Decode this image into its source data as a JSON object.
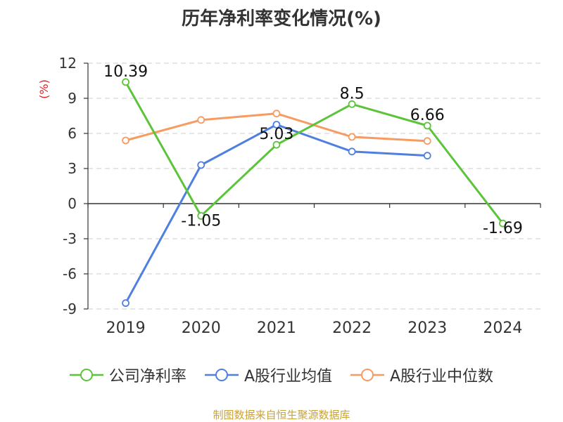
{
  "chart_data": {
    "type": "line",
    "title": "历年净利率变化情况(%)",
    "ylabel": "(%)",
    "xlabel": "",
    "categories": [
      "2019",
      "2020",
      "2021",
      "2022",
      "2023",
      "2024"
    ],
    "ylim": [
      -9,
      12
    ],
    "yticks": [
      12,
      9,
      6,
      3,
      0,
      -3,
      -6,
      -9
    ],
    "grid": true,
    "legend_position": "bottom",
    "series": [
      {
        "name": "公司净利率",
        "color": "#5cc43a",
        "values": [
          10.39,
          -1.05,
          5.03,
          8.5,
          6.66,
          -1.69
        ],
        "show_labels": true
      },
      {
        "name": "A股行业均值",
        "color": "#4f7fe0",
        "values": [
          -8.5,
          3.3,
          6.75,
          4.45,
          4.1,
          null
        ],
        "show_labels": false
      },
      {
        "name": "A股行业中位数",
        "color": "#f79b60",
        "values": [
          5.4,
          7.15,
          7.7,
          5.7,
          5.35,
          null
        ],
        "show_labels": false
      }
    ],
    "data_labels": [
      "10.39",
      "-1.05",
      "5.03",
      "8.5",
      "6.66",
      "-1.69"
    ]
  },
  "source_note": "制图数据来自恒生聚源数据库"
}
